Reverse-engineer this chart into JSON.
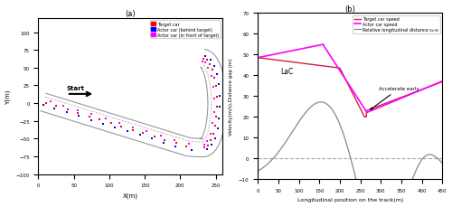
{
  "title_a": "(a)",
  "title_b": "(b)",
  "xlabel_a": "X(m)",
  "ylabel_a": "Y(m)",
  "xlabel_b": "Longitudinal position on the track(m)",
  "ylabel_b": "Velocity(m/s),Distance gap (m)",
  "xlim_a": [
    0,
    260
  ],
  "ylim_a": [
    -100,
    120
  ],
  "xlim_b": [
    0,
    450
  ],
  "ylim_b": [
    -10,
    70
  ],
  "legend_a": [
    "Target car",
    "Actor car (behind target)",
    "Actor car (in front of target)"
  ],
  "legend_b": [
    "Target car speed",
    "Actor car speed",
    "Relative longitudinal distance sₐ-sₜ"
  ],
  "colors_a": [
    "#FF0000",
    "#0000FF",
    "#FF00FF"
  ],
  "colors_b": [
    "#CC2244",
    "#FF00FF",
    "#888888"
  ],
  "track_color": "#999999",
  "dashed_color": "#BB88BB",
  "lac_text": "LaC",
  "accel_text": "Accelerate early",
  "start_text": "Start"
}
